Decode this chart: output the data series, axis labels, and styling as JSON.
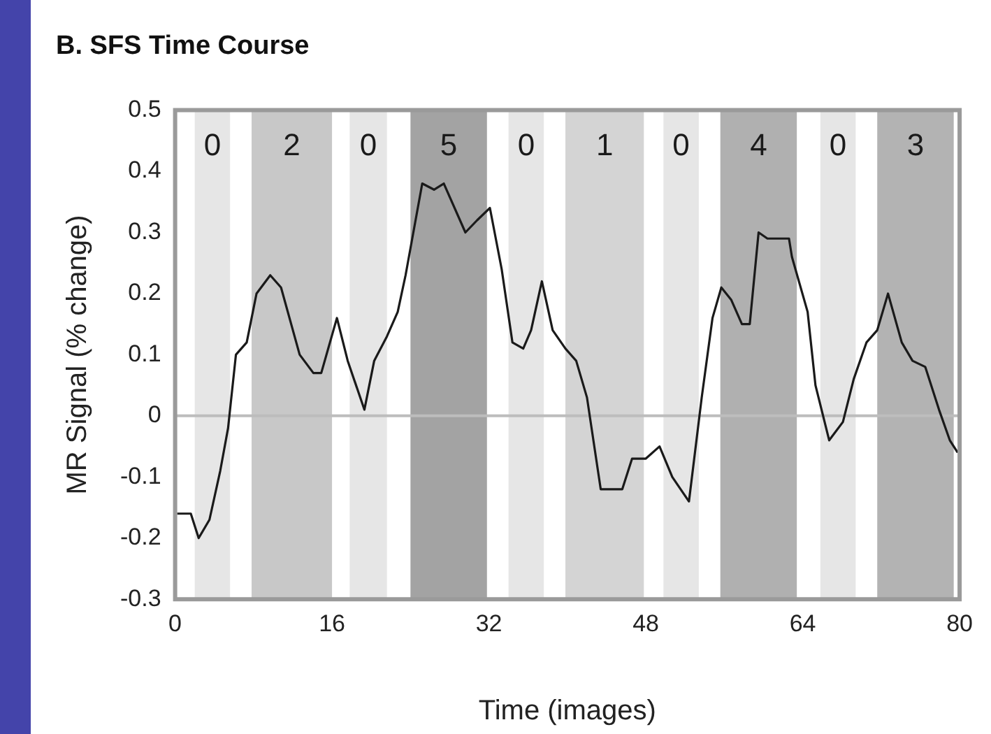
{
  "chart_data": {
    "type": "line",
    "title": "B. SFS Time Course",
    "xlabel": "Time (images)",
    "ylabel": "MR Signal (% change)",
    "xlim": [
      0,
      80
    ],
    "xticks": [
      0,
      16,
      32,
      48,
      64,
      80
    ],
    "ylim": [
      -0.3,
      0.5
    ],
    "yticks": [
      -0.3,
      -0.2,
      -0.1,
      0,
      0.1,
      0.2,
      0.3,
      0.4,
      0.5
    ],
    "grid": false,
    "legend": false,
    "marker": "none",
    "line_style": "solid",
    "ref_lines": [
      {
        "axis": "y",
        "value": 0,
        "color": "#bdbdbd"
      }
    ],
    "bands": [
      {
        "axis": "x",
        "from": 2,
        "to": 5.6,
        "label": "0",
        "color": "#e6e6e6"
      },
      {
        "axis": "x",
        "from": 7.8,
        "to": 16,
        "label": "2",
        "color": "#c8c8c8"
      },
      {
        "axis": "x",
        "from": 17.8,
        "to": 21.6,
        "label": "0",
        "color": "#e6e6e6"
      },
      {
        "axis": "x",
        "from": 24,
        "to": 31.8,
        "label": "5",
        "color": "#a3a3a3"
      },
      {
        "axis": "x",
        "from": 34,
        "to": 37.6,
        "label": "0",
        "color": "#e6e6e6"
      },
      {
        "axis": "x",
        "from": 39.8,
        "to": 47.8,
        "label": "1",
        "color": "#d4d4d4"
      },
      {
        "axis": "x",
        "from": 49.8,
        "to": 53.4,
        "label": "0",
        "color": "#e6e6e6"
      },
      {
        "axis": "x",
        "from": 55.6,
        "to": 63.4,
        "label": "4",
        "color": "#b0b0b0"
      },
      {
        "axis": "x",
        "from": 65.8,
        "to": 69.4,
        "label": "0",
        "color": "#e6e6e6"
      },
      {
        "axis": "x",
        "from": 71.6,
        "to": 79.4,
        "label": "3",
        "color": "#b3b3b3"
      }
    ],
    "x": [
      0.2,
      1.6,
      2.4,
      3.5,
      4.6,
      5.4,
      6.2,
      7.3,
      8.3,
      9.7,
      10.8,
      12.7,
      14.1,
      14.9,
      16.5,
      17.6,
      19.3,
      20.3,
      21.6,
      22.7,
      23.5,
      25.2,
      26.4,
      27.4,
      29.6,
      30.8,
      32.1,
      33.3,
      34.4,
      35.5,
      36.3,
      37.4,
      38.5,
      39.8,
      40.9,
      42,
      43.4,
      44.5,
      45.6,
      46.6,
      48,
      49.4,
      50.7,
      52.4,
      53.7,
      54.8,
      55.7,
      56.7,
      57.8,
      58.6,
      59.5,
      60.4,
      62.6,
      62.9,
      64.5,
      65.3,
      66.7,
      68.1,
      69.2,
      70.5,
      71.6,
      72.7,
      74.1,
      75.2,
      76.5,
      77.9,
      79,
      79.8
    ],
    "series": [
      {
        "color": "#1a1a1a",
        "values": [
          -0.16,
          -0.16,
          -0.2,
          -0.17,
          -0.09,
          -0.02,
          0.1,
          0.12,
          0.2,
          0.23,
          0.21,
          0.1,
          0.07,
          0.07,
          0.16,
          0.09,
          0.01,
          0.09,
          0.13,
          0.17,
          0.23,
          0.38,
          0.37,
          0.38,
          0.3,
          0.32,
          0.34,
          0.24,
          0.12,
          0.11,
          0.14,
          0.22,
          0.14,
          0.11,
          0.09,
          0.03,
          -0.12,
          -0.12,
          -0.12,
          -0.07,
          -0.07,
          -0.05,
          -0.1,
          -0.14,
          0.03,
          0.16,
          0.21,
          0.19,
          0.15,
          0.15,
          0.3,
          0.29,
          0.29,
          0.26,
          0.17,
          0.05,
          -0.04,
          -0.01,
          0.06,
          0.12,
          0.14,
          0.2,
          0.12,
          0.09,
          0.08,
          0.01,
          -0.04,
          -0.06
        ]
      }
    ]
  }
}
